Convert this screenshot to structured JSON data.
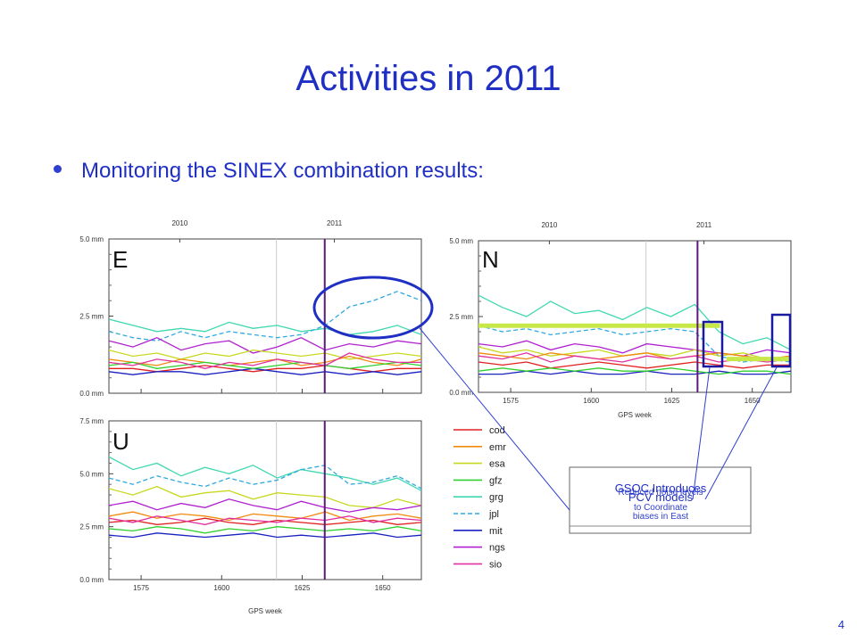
{
  "slide": {
    "title": "Activities in 2011",
    "bullet": "Monitoring the SINEX combination results:",
    "page_number": "4"
  },
  "colors": {
    "title": "#1f2fc4",
    "event_line": "#5a1a7a",
    "annotation": "#1f2fc4",
    "highlight_bar": "#c8e84a"
  },
  "chart_data": [
    {
      "type": "line",
      "panel": "E",
      "x_axis": "GPS week",
      "xlim": [
        1565,
        1662
      ],
      "ylim": [
        0,
        5
      ],
      "yticks": [
        "0.0 mm",
        "2.5 mm",
        "5.0 mm"
      ],
      "xticks": [
        "1575",
        "1600",
        "1625",
        "1650"
      ],
      "top_years": [
        "2010",
        "2011"
      ],
      "event_week": 1632,
      "series": [
        {
          "name": "grg",
          "values": [
            2.4,
            2.2,
            2.0,
            2.1,
            2.0,
            2.3,
            2.1,
            2.2,
            2.0,
            2.1,
            1.9,
            2.0,
            2.2,
            1.9
          ]
        },
        {
          "name": "jpl",
          "values": [
            2.0,
            1.8,
            1.7,
            2.0,
            1.8,
            2.0,
            1.9,
            1.8,
            1.9,
            2.2,
            2.8,
            3.0,
            3.3,
            3.0
          ]
        },
        {
          "name": "ngs",
          "values": [
            1.7,
            1.5,
            1.8,
            1.4,
            1.6,
            1.7,
            1.3,
            1.5,
            1.8,
            1.4,
            1.6,
            1.5,
            1.7,
            1.6
          ]
        },
        {
          "name": "esa",
          "values": [
            1.4,
            1.2,
            1.3,
            1.1,
            1.3,
            1.2,
            1.4,
            1.3,
            1.2,
            1.3,
            1.1,
            1.2,
            1.3,
            1.2
          ]
        },
        {
          "name": "emr",
          "values": [
            1.1,
            1.0,
            0.9,
            1.1,
            1.0,
            0.9,
            1.0,
            1.1,
            0.9,
            1.0,
            1.2,
            1.0,
            0.9,
            1.1
          ]
        },
        {
          "name": "cod",
          "values": [
            0.8,
            0.8,
            0.7,
            0.8,
            0.9,
            0.8,
            0.7,
            0.8,
            0.8,
            0.9,
            0.8,
            0.7,
            0.8,
            0.8
          ]
        },
        {
          "name": "mit",
          "values": [
            0.7,
            0.6,
            0.7,
            0.7,
            0.6,
            0.7,
            0.8,
            0.7,
            0.6,
            0.7,
            0.6,
            0.7,
            0.6,
            0.7
          ]
        },
        {
          "name": "gfz",
          "values": [
            0.9,
            1.0,
            0.8,
            0.9,
            1.0,
            0.9,
            0.8,
            0.9,
            1.0,
            0.9,
            0.8,
            0.9,
            1.0,
            0.9
          ]
        },
        {
          "name": "sio",
          "values": [
            1.0,
            0.9,
            1.1,
            1.0,
            0.8,
            1.0,
            0.9,
            1.1,
            1.0,
            0.9,
            1.3,
            1.1,
            1.0,
            1.0
          ]
        }
      ]
    },
    {
      "type": "line",
      "panel": "N",
      "x_axis": "GPS week",
      "xlim": [
        1565,
        1662
      ],
      "ylim": [
        0,
        5
      ],
      "yticks": [
        "0.0 mm",
        "2.5 mm",
        "5.0 mm"
      ],
      "xticks": [
        "1575",
        "1600",
        "1625",
        "1650"
      ],
      "x_label": "GPS week",
      "top_years": [
        "2010",
        "2011"
      ],
      "event_week": 1633,
      "series": [
        {
          "name": "grg",
          "values": [
            3.2,
            2.8,
            2.5,
            3.0,
            2.6,
            2.7,
            2.4,
            2.8,
            2.5,
            2.9,
            2.0,
            1.6,
            1.8,
            1.4
          ]
        },
        {
          "name": "jpl",
          "values": [
            2.2,
            2.0,
            2.1,
            1.9,
            2.0,
            2.1,
            1.9,
            2.0,
            2.1,
            2.0,
            1.2,
            1.0,
            1.1,
            1.0
          ]
        },
        {
          "name": "ngs",
          "values": [
            1.6,
            1.5,
            1.7,
            1.4,
            1.6,
            1.5,
            1.3,
            1.6,
            1.5,
            1.4,
            1.3,
            1.2,
            1.4,
            1.3
          ]
        },
        {
          "name": "esa",
          "values": [
            1.5,
            1.3,
            1.4,
            1.2,
            1.3,
            1.4,
            1.2,
            1.3,
            1.2,
            1.4,
            1.2,
            1.3,
            1.1,
            1.2
          ]
        },
        {
          "name": "emr",
          "values": [
            1.3,
            1.2,
            1.1,
            1.3,
            1.2,
            1.1,
            1.2,
            1.3,
            1.1,
            1.2,
            1.3,
            1.2,
            1.1,
            1.2
          ]
        },
        {
          "name": "cod",
          "values": [
            1.0,
            0.9,
            1.0,
            0.8,
            0.9,
            1.0,
            0.9,
            0.8,
            0.9,
            1.0,
            0.9,
            0.8,
            0.9,
            0.9
          ]
        },
        {
          "name": "mit",
          "values": [
            0.6,
            0.6,
            0.7,
            0.6,
            0.7,
            0.6,
            0.6,
            0.7,
            0.6,
            0.6,
            0.7,
            0.6,
            0.6,
            0.7
          ]
        },
        {
          "name": "gfz",
          "values": [
            0.7,
            0.8,
            0.7,
            0.8,
            0.7,
            0.8,
            0.7,
            0.7,
            0.8,
            0.7,
            0.6,
            0.7,
            0.7,
            0.6
          ]
        },
        {
          "name": "sio",
          "values": [
            1.2,
            1.1,
            1.3,
            1.0,
            1.2,
            1.1,
            1.0,
            1.2,
            1.1,
            1.2,
            1.0,
            1.1,
            1.0,
            1.1
          ]
        }
      ],
      "highlight_levels": [
        {
          "from_week": 1565,
          "to_week": 1640,
          "value": 2.2
        },
        {
          "from_week": 1642,
          "to_week": 1662,
          "value": 1.1
        }
      ]
    },
    {
      "type": "line",
      "panel": "U",
      "x_axis": "GPS week",
      "xlim": [
        1565,
        1662
      ],
      "ylim": [
        0,
        7.5
      ],
      "yticks": [
        "0.0 mm",
        "2.5 mm",
        "5.0 mm",
        "7.5 mm"
      ],
      "xticks": [
        "1575",
        "1600",
        "1625",
        "1650"
      ],
      "x_label": "GPS week",
      "event_week": 1632,
      "series": [
        {
          "name": "grg",
          "values": [
            5.8,
            5.2,
            5.5,
            4.9,
            5.3,
            5.0,
            5.4,
            4.8,
            5.2,
            5.0,
            4.8,
            4.5,
            4.8,
            4.2
          ]
        },
        {
          "name": "jpl",
          "values": [
            4.8,
            4.5,
            4.9,
            4.6,
            4.4,
            4.8,
            4.5,
            4.7,
            5.2,
            5.4,
            4.5,
            4.6,
            4.9,
            4.3
          ]
        },
        {
          "name": "esa",
          "values": [
            4.3,
            4.0,
            4.4,
            3.9,
            4.1,
            4.2,
            3.8,
            4.1,
            4.0,
            3.9,
            3.5,
            3.4,
            3.8,
            3.5
          ]
        },
        {
          "name": "ngs",
          "values": [
            3.5,
            3.7,
            3.3,
            3.6,
            3.4,
            3.8,
            3.5,
            3.3,
            3.7,
            3.4,
            3.2,
            3.4,
            3.3,
            3.5
          ]
        },
        {
          "name": "emr",
          "values": [
            3.0,
            3.2,
            2.9,
            3.1,
            3.0,
            2.8,
            3.1,
            3.0,
            2.9,
            3.2,
            2.8,
            3.0,
            3.1,
            2.9
          ]
        },
        {
          "name": "cod",
          "values": [
            2.7,
            2.8,
            2.6,
            2.7,
            2.9,
            2.7,
            2.6,
            2.8,
            2.7,
            2.6,
            2.7,
            2.8,
            2.6,
            2.7
          ]
        },
        {
          "name": "sio",
          "values": [
            2.9,
            2.7,
            3.0,
            2.8,
            2.6,
            2.9,
            2.8,
            2.7,
            2.9,
            2.8,
            3.0,
            2.7,
            2.9,
            2.8
          ]
        },
        {
          "name": "gfz",
          "values": [
            2.4,
            2.3,
            2.5,
            2.4,
            2.2,
            2.4,
            2.3,
            2.5,
            2.4,
            2.3,
            2.4,
            2.3,
            2.5,
            2.3
          ]
        },
        {
          "name": "mit",
          "values": [
            2.1,
            2.0,
            2.2,
            2.1,
            2.0,
            2.1,
            2.2,
            2.0,
            2.1,
            2.0,
            2.1,
            2.2,
            2.0,
            2.1
          ]
        }
      ]
    }
  ],
  "legend": [
    {
      "name": "cod",
      "color": "#e02020",
      "dashed": false
    },
    {
      "name": "emr",
      "color": "#f08a10",
      "dashed": false
    },
    {
      "name": "esa",
      "color": "#c8d820",
      "dashed": false
    },
    {
      "name": "gfz",
      "color": "#30d030",
      "dashed": false
    },
    {
      "name": "grg",
      "color": "#40d8b0",
      "dashed": false
    },
    {
      "name": "jpl",
      "color": "#30a8e0",
      "dashed": true
    },
    {
      "name": "mit",
      "color": "#1a22c0",
      "dashed": false
    },
    {
      "name": "ngs",
      "color": "#b020d0",
      "dashed": false
    },
    {
      "name": "sio",
      "color": "#e030a0",
      "dashed": false
    }
  ],
  "callout": {
    "lines": [
      "GSOC Introduces",
      "PCV models",
      "to Coordinate",
      "biases in East"
    ],
    "overlay_text": "Reduced noise levels"
  }
}
